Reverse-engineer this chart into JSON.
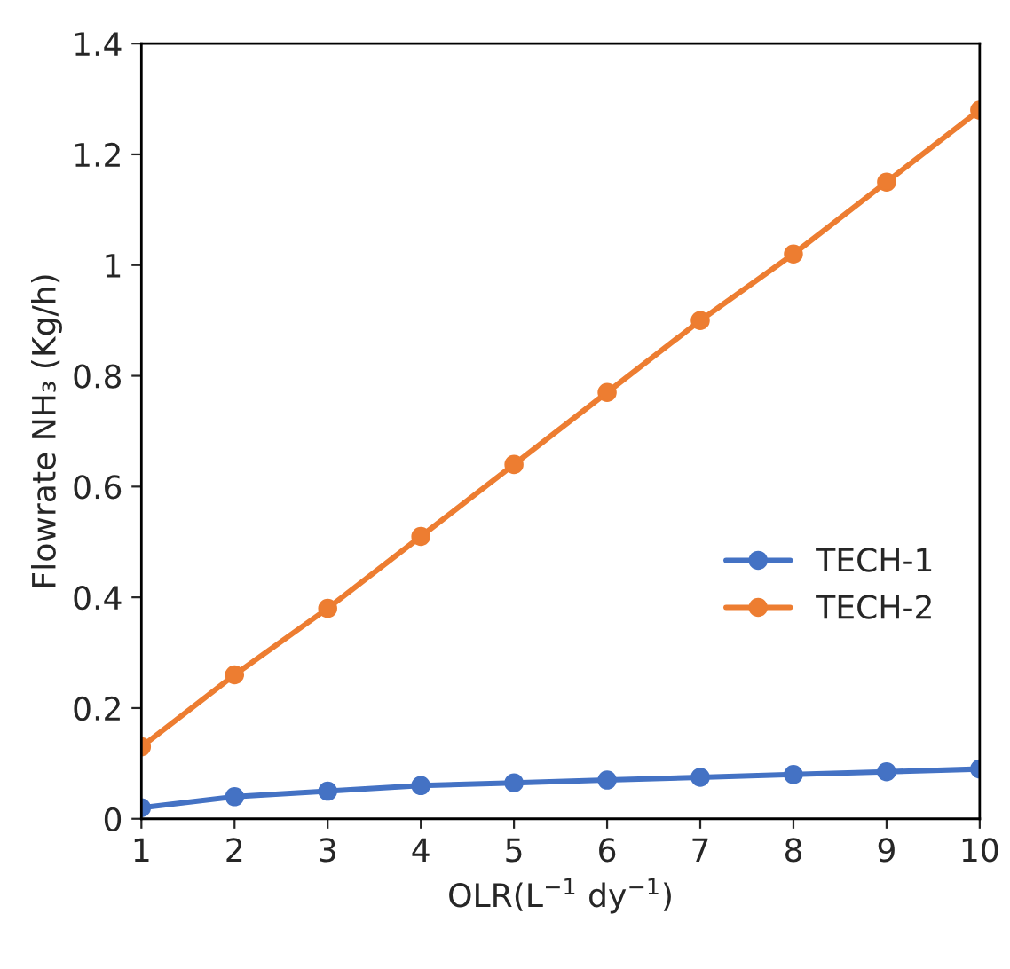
{
  "chart_data": {
    "type": "line",
    "xlabel": "OLR(L$^{−1}$ dy$^{−1}$)",
    "ylabel": "Flowrate NH₃ (Kg/h)",
    "x": [
      1,
      2,
      3,
      4,
      5,
      6,
      7,
      8,
      9,
      10
    ],
    "series": [
      {
        "name": "TECH-1",
        "color": "#4472c4",
        "values": [
          0.02,
          0.04,
          0.05,
          0.06,
          0.065,
          0.07,
          0.075,
          0.08,
          0.085,
          0.09
        ]
      },
      {
        "name": "TECH-2",
        "color": "#ed7d31",
        "values": [
          0.13,
          0.26,
          0.38,
          0.51,
          0.64,
          0.77,
          0.9,
          1.02,
          1.15,
          1.28
        ]
      }
    ],
    "xlim": [
      1,
      10
    ],
    "xticks": [
      1,
      2,
      3,
      4,
      5,
      6,
      7,
      8,
      9,
      10
    ],
    "ylim": [
      0,
      1.4
    ],
    "yticks": [
      0,
      0.2,
      0.4,
      0.6,
      0.8,
      1,
      1.2,
      1.4
    ],
    "grid": false,
    "legend": "right",
    "marker": "circle",
    "line_style": "solid"
  }
}
